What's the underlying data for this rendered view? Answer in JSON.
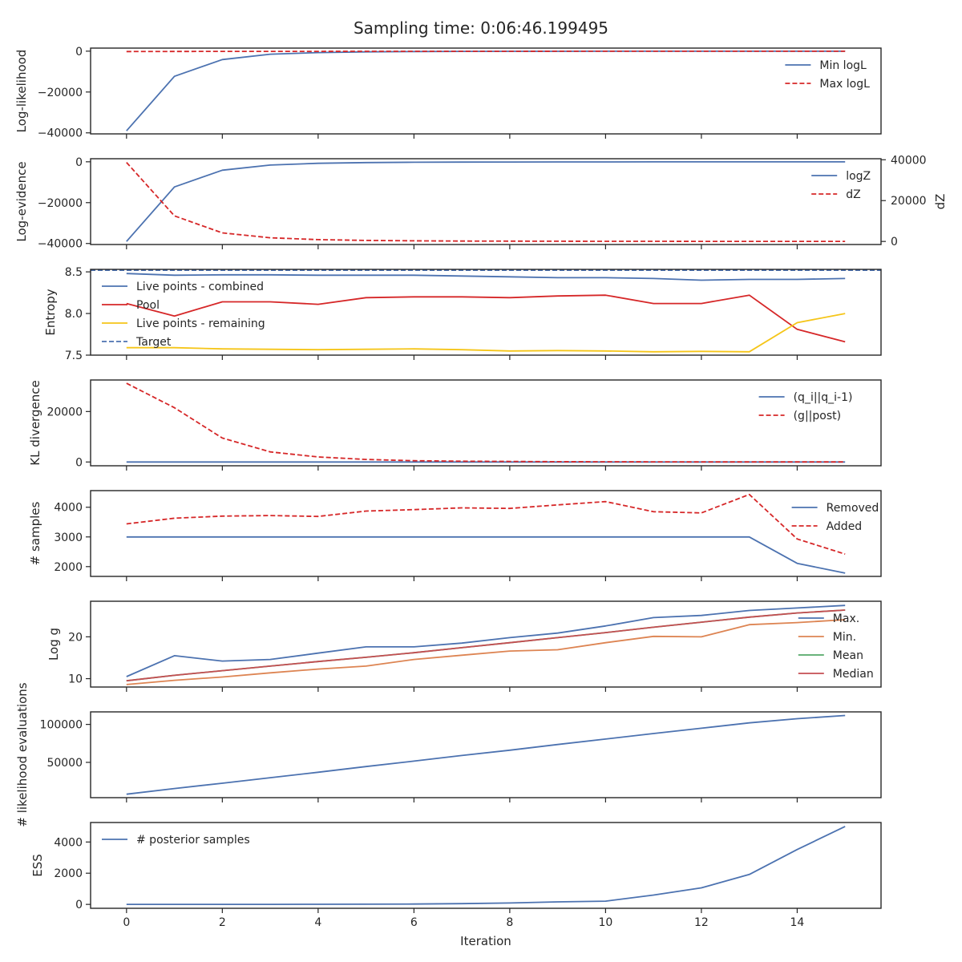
{
  "figure": {
    "title": "Sampling time: 0:06:46.199495",
    "xlabel": "Iteration",
    "xlim": [
      -0.75,
      15.75
    ],
    "xticks": [
      0,
      2,
      4,
      6,
      8,
      10,
      12,
      14
    ]
  },
  "chart_data": [
    {
      "type": "line",
      "ylabel": "Log-likelihood",
      "ylim": [
        -40500,
        1500
      ],
      "yticks": [
        0,
        -20000,
        -40000
      ],
      "legend": "right",
      "x": [
        0,
        1,
        2,
        3,
        4,
        5,
        6,
        7,
        8,
        9,
        10,
        11,
        12,
        13,
        14,
        15
      ],
      "series": [
        {
          "name": "Min logL",
          "color": "#4c72b0",
          "dash": false,
          "values": [
            -39000,
            -12300,
            -4100,
            -1500,
            -700,
            -350,
            -200,
            -120,
            -80,
            -60,
            -50,
            -40,
            -30,
            -25,
            -20,
            -15
          ]
        },
        {
          "name": "Max logL",
          "color": "#d62728",
          "dash": true,
          "values": [
            -200,
            -150,
            -120,
            -100,
            -90,
            -80,
            -70,
            -60,
            -55,
            -50,
            -45,
            -40,
            -35,
            -30,
            -25,
            -20
          ]
        }
      ]
    },
    {
      "type": "line",
      "ylabel": "Log-evidence",
      "ylim": [
        -40500,
        1500
      ],
      "yticks": [
        0,
        -20000,
        -40000
      ],
      "y2label": "dZ",
      "y2lim": [
        -1500,
        40500
      ],
      "y2ticks": [
        0,
        20000,
        40000
      ],
      "legend": "right",
      "x": [
        0,
        1,
        2,
        3,
        4,
        5,
        6,
        7,
        8,
        9,
        10,
        11,
        12,
        13,
        14,
        15
      ],
      "series": [
        {
          "name": "logZ",
          "color": "#4c72b0",
          "dash": false,
          "axis": "left",
          "values": [
            -39000,
            -12300,
            -4100,
            -1600,
            -750,
            -400,
            -220,
            -150,
            -100,
            -80,
            -60,
            -50,
            -40,
            -35,
            -30,
            -25
          ]
        },
        {
          "name": "dZ",
          "color": "#d62728",
          "dash": true,
          "axis": "right",
          "values": [
            38700,
            12500,
            4200,
            1800,
            900,
            500,
            300,
            200,
            150,
            100,
            80,
            60,
            50,
            40,
            30,
            20
          ]
        }
      ]
    },
    {
      "type": "line",
      "ylabel": "Entropy",
      "ylim": [
        7.5,
        8.53
      ],
      "yticks": [
        8.5,
        8.0,
        7.5
      ],
      "ytick_labels": [
        "8.5",
        "8.0",
        "7.5"
      ],
      "legend": "upper-left",
      "x": [
        0,
        1,
        2,
        3,
        4,
        5,
        6,
        7,
        8,
        9,
        10,
        11,
        12,
        13,
        14,
        15
      ],
      "hline": {
        "name": "Target",
        "value": 8.52,
        "color": "#4c72b0",
        "dash": true
      },
      "series": [
        {
          "name": "Live points - combined",
          "color": "#4c72b0",
          "dash": false,
          "values": [
            8.48,
            8.46,
            8.465,
            8.465,
            8.46,
            8.46,
            8.46,
            8.45,
            8.44,
            8.43,
            8.43,
            8.42,
            8.4,
            8.41,
            8.41,
            8.42
          ]
        },
        {
          "name": "Pool",
          "color": "#d62728",
          "dash": false,
          "values": [
            8.12,
            7.97,
            8.14,
            8.14,
            8.11,
            8.19,
            8.2,
            8.2,
            8.19,
            8.21,
            8.22,
            8.12,
            8.12,
            8.22,
            7.81,
            7.66
          ]
        },
        {
          "name": "Live points - remaining",
          "color": "#f5c518",
          "dash": false,
          "values": [
            7.59,
            7.59,
            7.575,
            7.57,
            7.565,
            7.57,
            7.575,
            7.565,
            7.55,
            7.555,
            7.55,
            7.54,
            7.545,
            7.54,
            7.89,
            8.0
          ]
        }
      ]
    },
    {
      "type": "line",
      "ylabel": "KL divergence",
      "ylim": [
        -1500,
        32500
      ],
      "yticks": [
        0,
        20000
      ],
      "legend": "right",
      "x": [
        0,
        1,
        2,
        3,
        4,
        5,
        6,
        7,
        8,
        9,
        10,
        11,
        12,
        13,
        14,
        15
      ],
      "series": [
        {
          "name": "(q_i||q_i-1)",
          "color": "#4c72b0",
          "dash": false,
          "values": [
            5,
            5,
            5,
            5,
            5,
            5,
            5,
            5,
            5,
            5,
            5,
            5,
            5,
            5,
            5,
            5
          ]
        },
        {
          "name": "(g||post)",
          "color": "#d62728",
          "dash": true,
          "values": [
            31200,
            21500,
            9500,
            4000,
            2000,
            1000,
            500,
            300,
            200,
            120,
            80,
            60,
            40,
            30,
            20,
            10
          ]
        }
      ]
    },
    {
      "type": "line",
      "ylabel": "# samples",
      "ylim": [
        1670,
        4560
      ],
      "yticks": [
        4000,
        3000,
        2000
      ],
      "legend": "right",
      "x": [
        0,
        1,
        2,
        3,
        4,
        5,
        6,
        7,
        8,
        9,
        10,
        11,
        12,
        13,
        14,
        15
      ],
      "series": [
        {
          "name": "Removed",
          "color": "#4c72b0",
          "dash": false,
          "values": [
            3000,
            3000,
            3000,
            3000,
            3000,
            3000,
            3000,
            3000,
            3000,
            3000,
            3000,
            3000,
            3000,
            3000,
            2110,
            1780
          ]
        },
        {
          "name": "Added",
          "color": "#d62728",
          "dash": true,
          "values": [
            3440,
            3630,
            3700,
            3720,
            3690,
            3870,
            3920,
            3980,
            3960,
            4080,
            4190,
            3850,
            3810,
            4430,
            2930,
            2420
          ]
        }
      ]
    },
    {
      "type": "line",
      "ylabel": "Log g",
      "ylim": [
        8,
        28.5
      ],
      "yticks": [
        20,
        10
      ],
      "legend": "right",
      "x": [
        0,
        1,
        2,
        3,
        4,
        5,
        6,
        7,
        8,
        9,
        10,
        11,
        12,
        13,
        14,
        15
      ],
      "series": [
        {
          "name": "Max.",
          "color": "#4c72b0",
          "dash": false,
          "values": [
            10.5,
            15.5,
            14.2,
            14.6,
            16.1,
            17.6,
            17.6,
            18.5,
            19.8,
            20.9,
            22.6,
            24.6,
            25.1,
            26.3,
            26.9,
            27.5
          ]
        },
        {
          "name": "Min.",
          "color": "#dd8452",
          "dash": false,
          "values": [
            8.6,
            9.6,
            10.4,
            11.4,
            12.3,
            13.0,
            14.6,
            15.6,
            16.6,
            16.9,
            18.6,
            20.1,
            20.0,
            22.9,
            23.4,
            24.1
          ]
        },
        {
          "name": "Mean",
          "color": "#55a868",
          "dash": false,
          "values": [
            9.5,
            10.8,
            11.9,
            13.0,
            14.1,
            15.1,
            16.2,
            17.4,
            18.6,
            19.8,
            21.0,
            22.3,
            23.5,
            24.7,
            25.7,
            26.4
          ]
        },
        {
          "name": "Median",
          "color": "#c44e52",
          "dash": false,
          "values": [
            9.5,
            10.8,
            11.9,
            13.0,
            14.1,
            15.1,
            16.2,
            17.4,
            18.6,
            19.8,
            21.0,
            22.3,
            23.5,
            24.7,
            25.7,
            26.4
          ]
        }
      ]
    },
    {
      "type": "line",
      "ylabel": "# likelihood evaluations",
      "ylim": [
        3500,
        116500
      ],
      "yticks": [
        100000,
        50000
      ],
      "legend": "none",
      "x": [
        0,
        1,
        2,
        3,
        4,
        5,
        6,
        7,
        8,
        9,
        10,
        11,
        12,
        13,
        14,
        15
      ],
      "series": [
        {
          "name": "",
          "color": "#4c72b0",
          "dash": false,
          "values": [
            8000,
            15500,
            22500,
            29800,
            37000,
            44500,
            51700,
            59000,
            66000,
            73500,
            80700,
            88000,
            95000,
            102000,
            107500,
            111700
          ]
        }
      ]
    },
    {
      "type": "line",
      "ylabel": "ESS",
      "ylim": [
        -250,
        5250
      ],
      "yticks": [
        4000,
        2000,
        0
      ],
      "legend": "upper-left",
      "x": [
        0,
        1,
        2,
        3,
        4,
        5,
        6,
        7,
        8,
        9,
        10,
        11,
        12,
        13,
        14,
        15
      ],
      "series": [
        {
          "name": "# posterior samples",
          "color": "#4c72b0",
          "dash": false,
          "values": [
            0,
            0,
            0,
            0,
            5,
            10,
            25,
            50,
            90,
            160,
            210,
            600,
            1060,
            1920,
            3520,
            5000
          ]
        }
      ]
    }
  ]
}
